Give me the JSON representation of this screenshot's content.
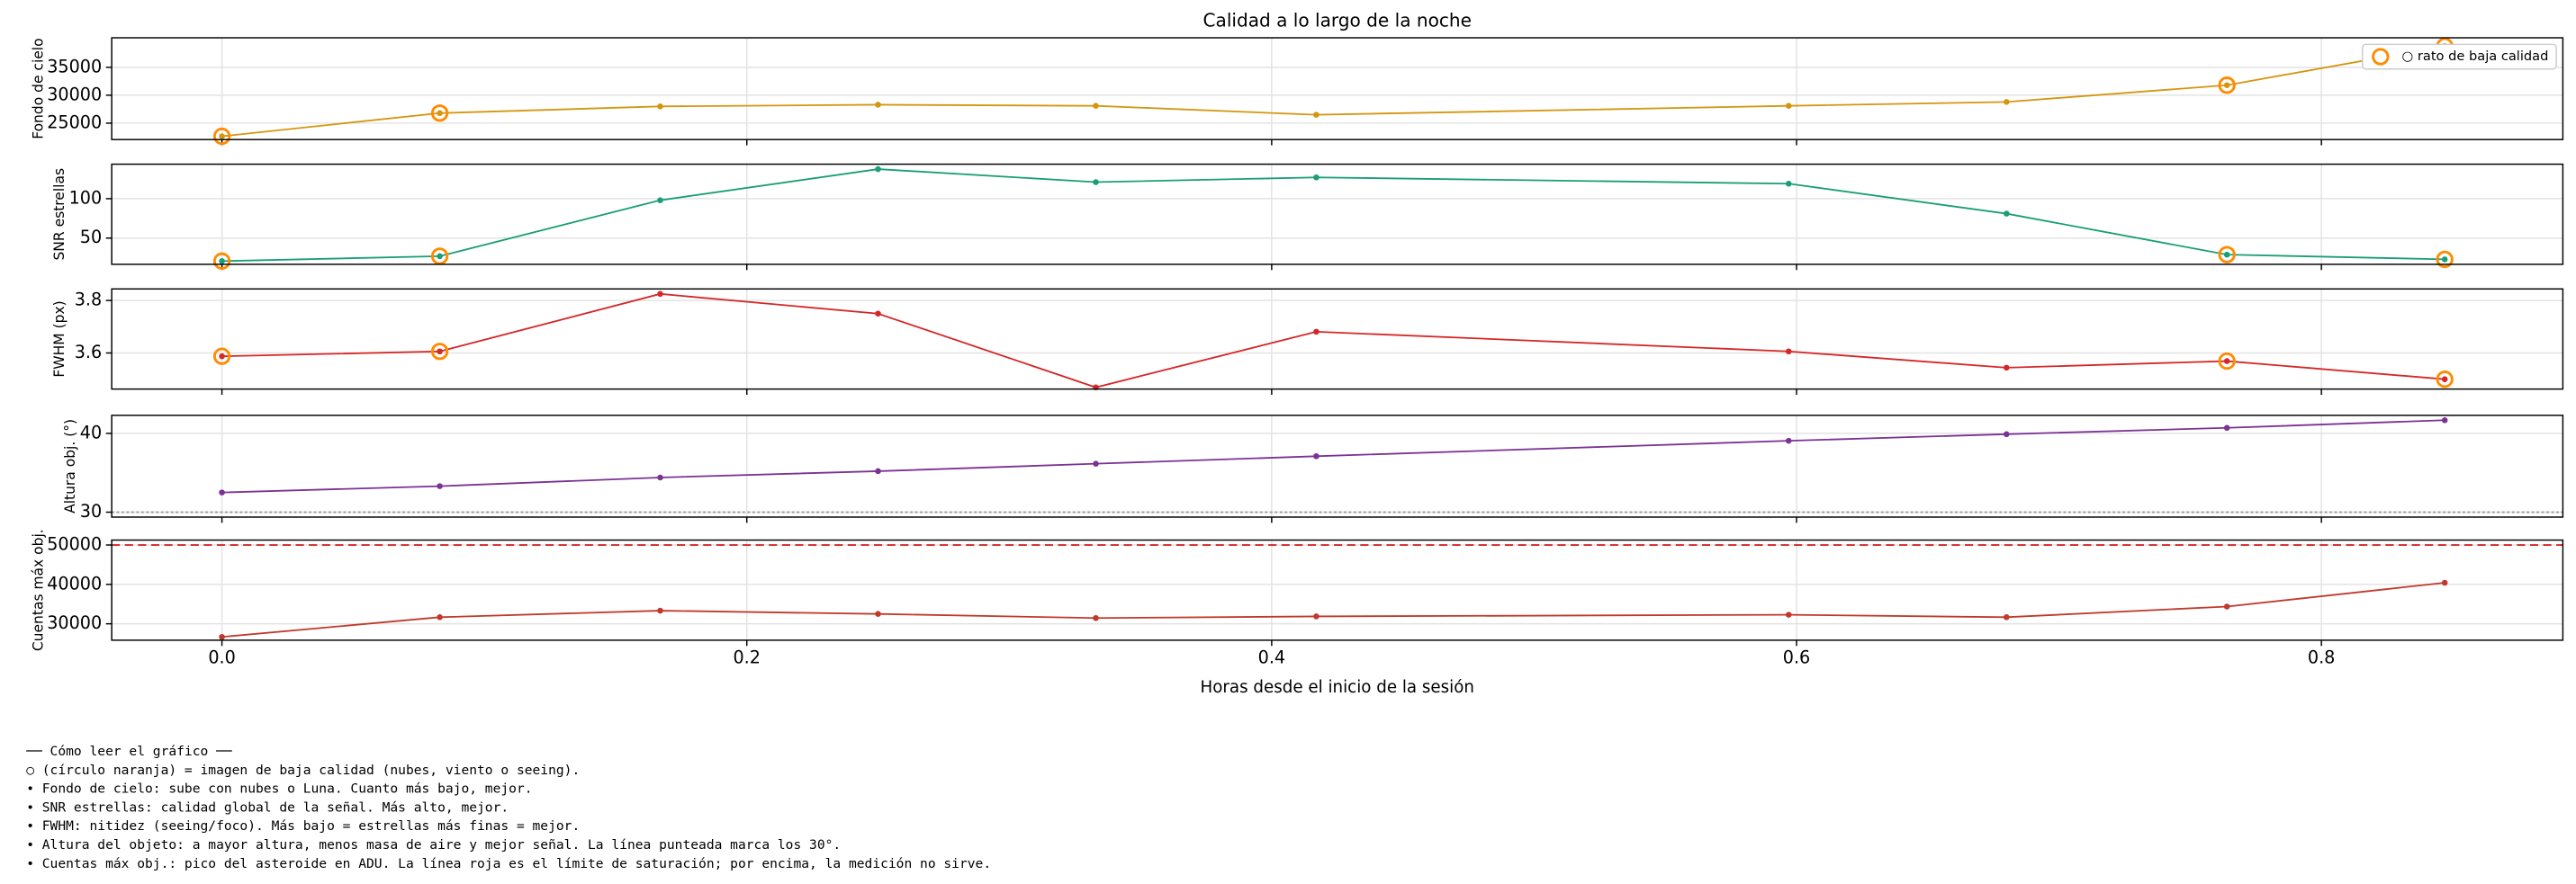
{
  "chart_data": [
    {
      "type": "line",
      "title": "Calidad a lo largo de la noche",
      "ylabel": "Fondo de cielo",
      "color": "#d4960f",
      "values": [
        22650,
        26800,
        28000,
        28300,
        28100,
        26500,
        28100,
        28800,
        31800,
        38800
      ],
      "flagged": [
        true,
        true,
        false,
        false,
        false,
        false,
        false,
        false,
        true,
        true
      ],
      "flag_color": "#ff8c00",
      "ylim": [
        22060,
        40290
      ],
      "yticks": [
        25000,
        30000,
        35000
      ],
      "grid": true,
      "legend": "○ rato de baja calidad",
      "legend_loc": "upper right"
    },
    {
      "type": "line",
      "ylabel": "SNR estrellas",
      "color": "#1a9e77",
      "values": [
        20.8,
        27,
        98,
        137.5,
        121,
        127,
        119,
        81,
        29,
        23
      ],
      "flagged": [
        true,
        true,
        false,
        false,
        false,
        false,
        false,
        false,
        true,
        true
      ],
      "flag_color": "#ff8c00",
      "ylim": [
        16.7,
        143.75
      ],
      "yticks": [
        50,
        100
      ],
      "grid": true
    },
    {
      "type": "line",
      "ylabel": "FWHM (px)",
      "color": "#d62728",
      "values": [
        3.5875,
        3.606,
        3.825,
        3.75,
        3.469,
        3.681,
        3.606,
        3.544,
        3.569,
        3.5
      ],
      "flagged": [
        true,
        true,
        false,
        false,
        false,
        false,
        false,
        false,
        true,
        true
      ],
      "flag_color": "#ff8c00",
      "ylim": [
        3.4625,
        3.844
      ],
      "yticks": [
        3.6,
        3.8
      ],
      "grid": true
    },
    {
      "type": "line",
      "ylabel": "Altura obj. (°)",
      "color": "#7b3294",
      "values": [
        32.5,
        33.3,
        34.4,
        35.2,
        36.15,
        37.1,
        39.06,
        39.9,
        40.7,
        41.67
      ],
      "ylim": [
        29.375,
        42.29
      ],
      "yticks": [
        30,
        40
      ],
      "grid": true,
      "hline": {
        "value": 30,
        "style": "dotted",
        "color": "#999999"
      }
    },
    {
      "type": "line",
      "ylabel": "Cuentas máx obj.",
      "color": "#c0392b",
      "x": [
        0,
        0.083,
        0.167,
        0.25,
        0.333,
        0.417,
        0.597,
        0.68,
        0.764,
        0.847
      ],
      "values": [
        26667,
        31667,
        33333,
        32500,
        31458,
        31875,
        32292,
        31667,
        34375,
        40417
      ],
      "ylim": [
        25833,
        51250
      ],
      "yticks": [
        30000,
        40000,
        50000
      ],
      "grid": true,
      "hline": {
        "value": 50000,
        "style": "dashed",
        "color": "#d62728"
      },
      "xlabel": "Horas desde el inicio de la sesión",
      "xlim": [
        -0.042,
        0.892
      ],
      "xticks": [
        {
          "value": 0,
          "label": "0.0"
        },
        0.2,
        0.4,
        0.6,
        0.8
      ]
    }
  ],
  "notes": [
    "── Cómo leer el gráfico ──",
    "○ (círculo naranja) = imagen de baja calidad (nubes, viento o seeing).",
    "• Fondo de cielo: sube con nubes o Luna. Cuanto más bajo, mejor.",
    "• SNR estrellas: calidad global de la señal. Más alto, mejor.",
    "• FWHM: nitidez (seeing/foco). Más bajo = estrellas más finas = mejor.",
    "• Altura del objeto: a mayor altura, menos masa de aire y mejor señal. La línea punteada marca los 30°.",
    "• Cuentas máx obj.: pico del asteroide en ADU. La línea roja es el límite de saturación; por encima, la medición no sirve."
  ]
}
